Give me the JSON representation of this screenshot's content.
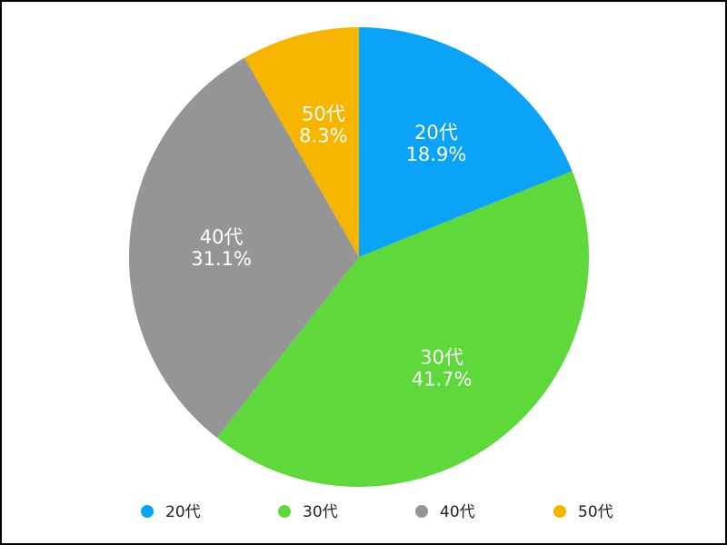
{
  "chart_data": {
    "type": "pie",
    "categories": [
      "20代",
      "30代",
      "40代",
      "50代"
    ],
    "values": [
      18.9,
      41.7,
      31.1,
      8.3
    ],
    "value_labels": [
      "18.9%",
      "41.7%",
      "31.1%",
      "8.3%"
    ],
    "colors": [
      "#0ba3f7",
      "#5fd83c",
      "#959595",
      "#f7b500"
    ],
    "start_angle": "12 o'clock",
    "direction": "clockwise",
    "legend_position": "bottom"
  }
}
